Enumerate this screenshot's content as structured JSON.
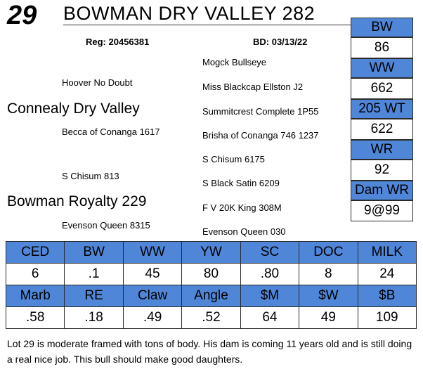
{
  "lot_number": "29",
  "animal_name": "BOWMAN DRY VALLEY 282",
  "registration": "Reg: 20456381",
  "birth_date": "BD: 03/13/22",
  "pedigree": {
    "sire": "Connealy Dry Valley",
    "sire_sire": "Hoover No Doubt",
    "sire_dam": "Becca of Conanga 1617",
    "dam": "Bowman Royalty 229",
    "dam_sire": "S Chisum 813",
    "dam_dam": "Evenson Queen 8315",
    "sss": "Mogck Bullseye",
    "ssd": "Miss Blackcap Ellston J2",
    "sds": "Summitcrest Complete 1P55",
    "sdd": "Brisha of Conanga 746 1237",
    "dss": "S Chisum 6175",
    "dsd": "S Black Satin 6209",
    "dds": "F V 20K King 308M",
    "ddd": "Evenson Queen 030"
  },
  "side_stats": [
    {
      "label": "BW",
      "value": "86"
    },
    {
      "label": "WW",
      "value": "662"
    },
    {
      "label": "205 WT",
      "value": "622"
    },
    {
      "label": "WR",
      "value": "92"
    },
    {
      "label": "Dam WR",
      "value": "9@99"
    }
  ],
  "epd_row1": {
    "headers": [
      "CED",
      "BW",
      "WW",
      "YW",
      "SC",
      "DOC",
      "MILK"
    ],
    "values": [
      "6",
      ".1",
      "45",
      "80",
      ".80",
      "8",
      "24"
    ]
  },
  "epd_row2": {
    "headers": [
      "Marb",
      "RE",
      "Claw",
      "Angle",
      "$M",
      "$W",
      "$B"
    ],
    "values": [
      ".58",
      ".18",
      ".49",
      ".52",
      "64",
      "49",
      "109"
    ]
  },
  "comment": "Lot 29 is moderate framed with tons of body.  His dam is coming 11 years old and is still doing a real nice job.  This bull should make good daughters.",
  "colors": {
    "header_fill": "#4f86d8",
    "border": "#2a2a2a"
  }
}
